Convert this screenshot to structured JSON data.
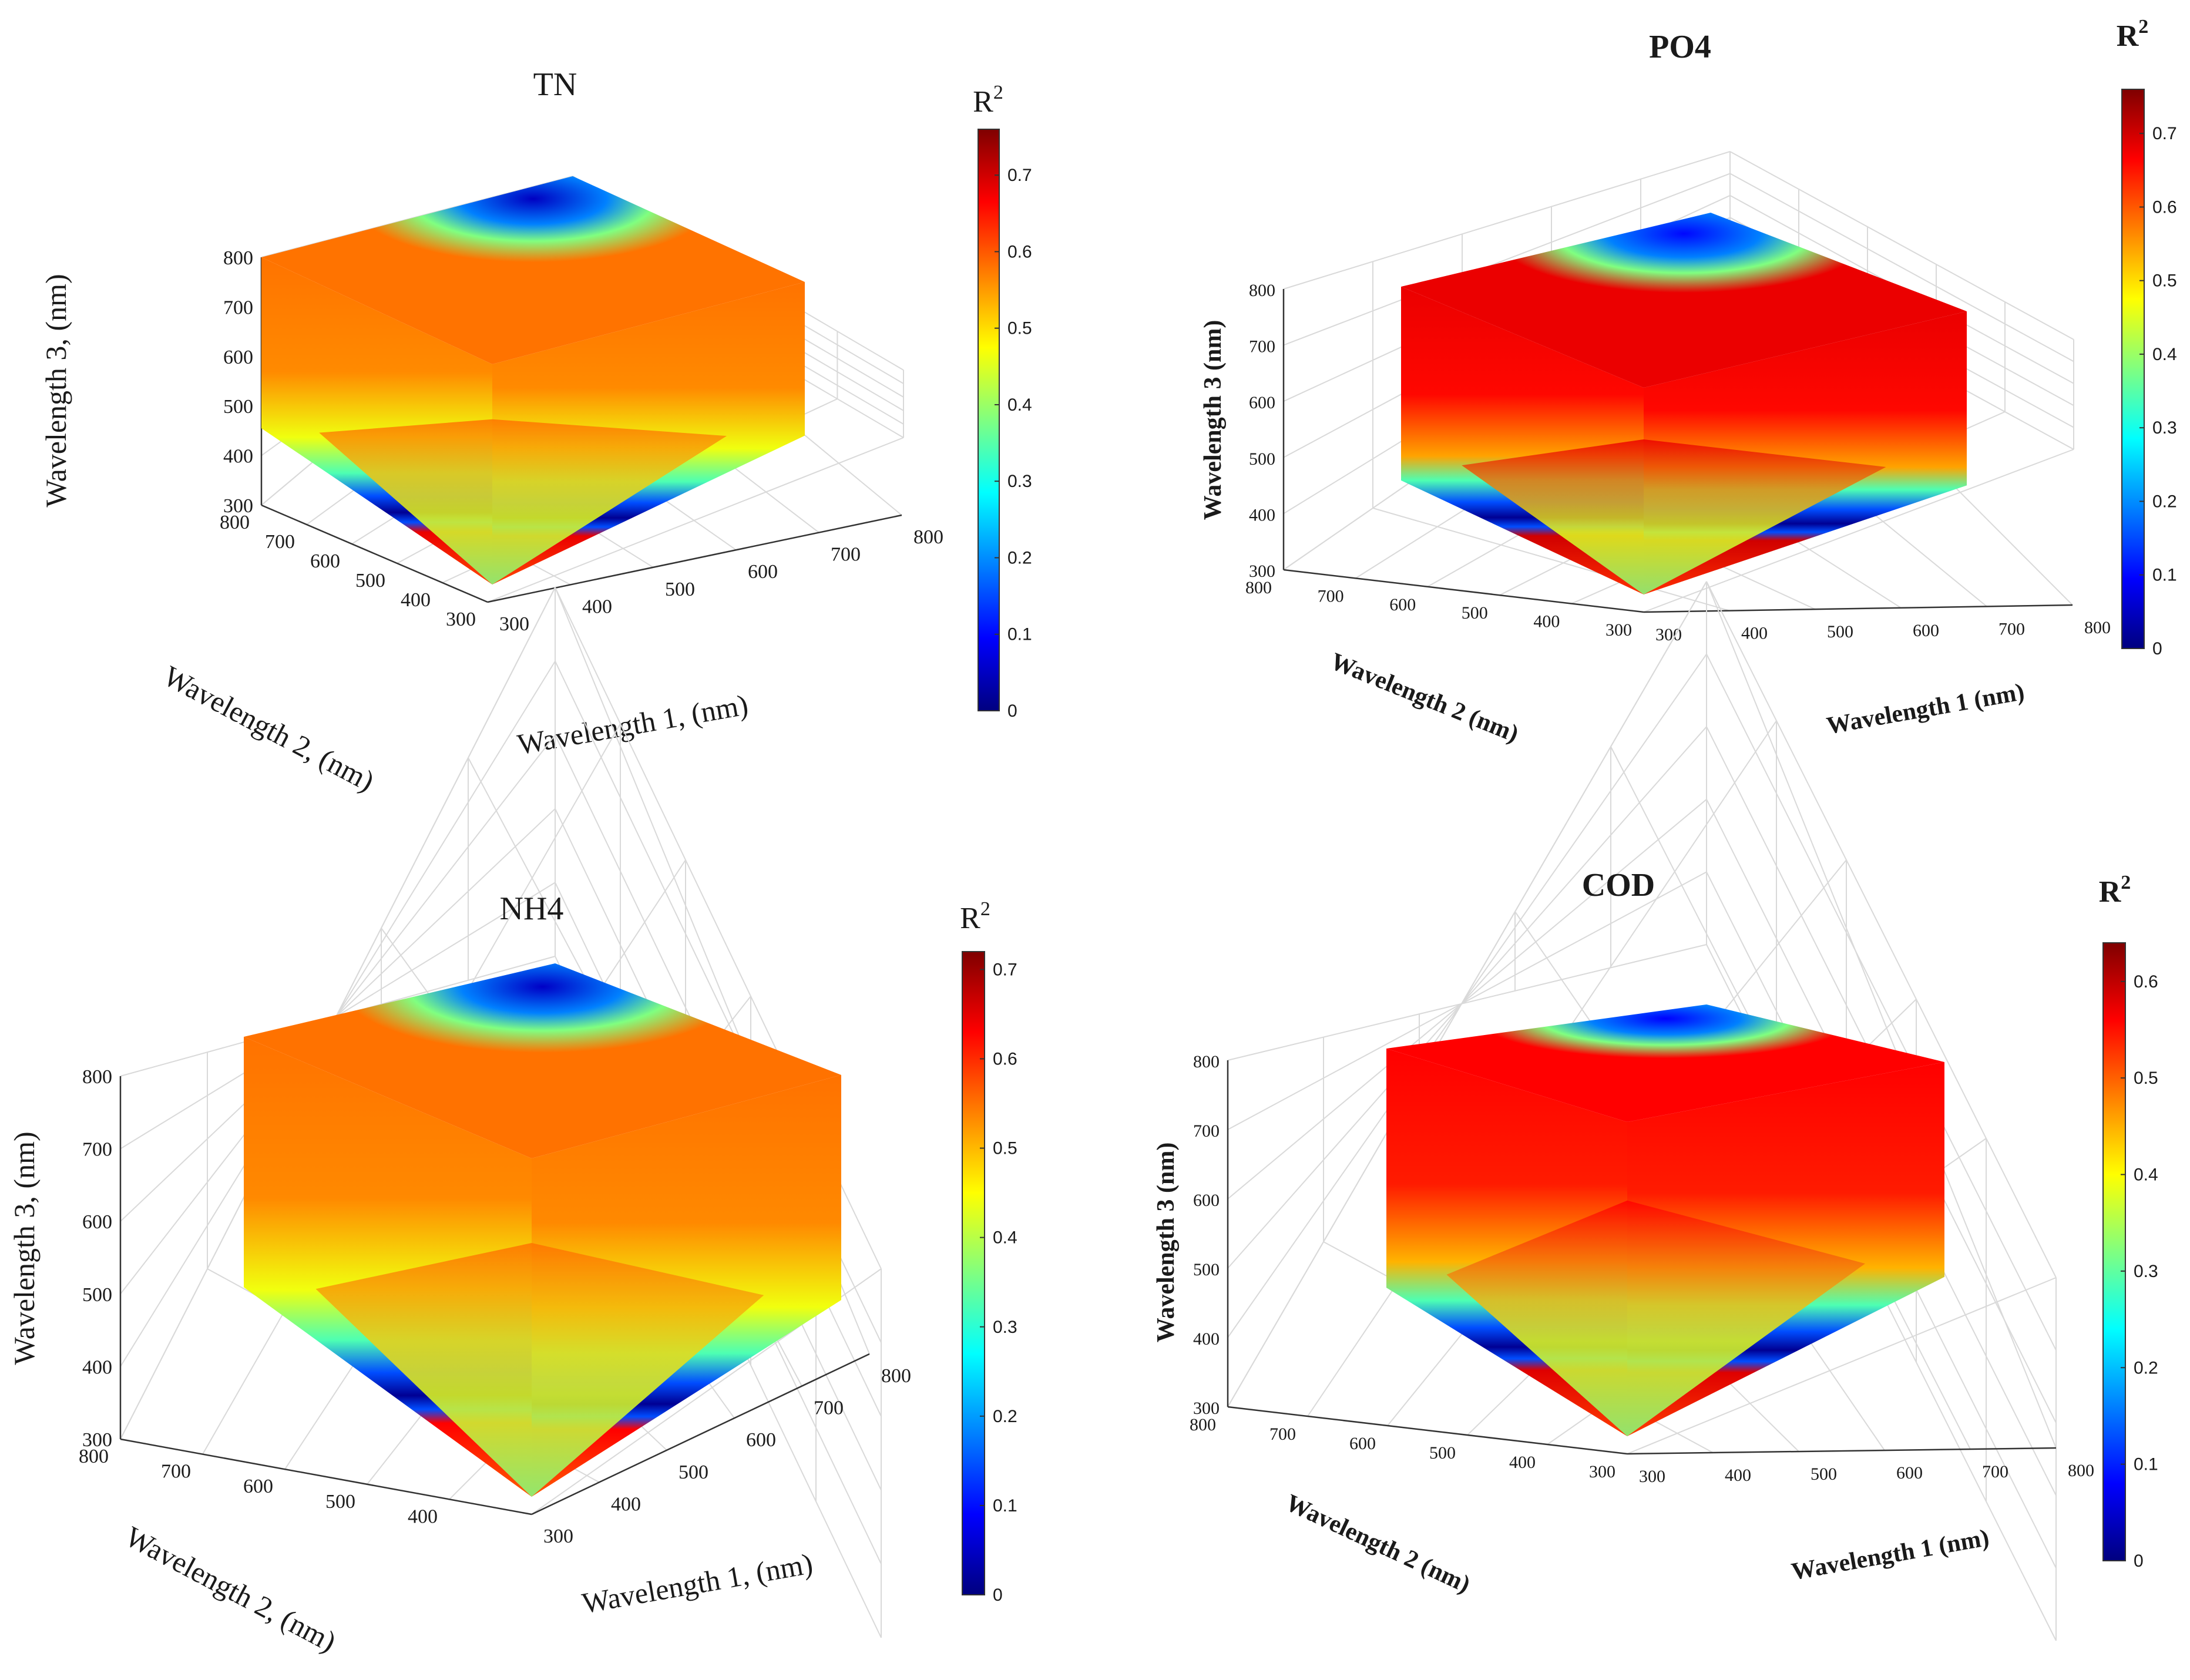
{
  "figure": {
    "colormap": [
      "#00007f",
      "#0000ff",
      "#0080ff",
      "#00ffff",
      "#80ff80",
      "#ffff00",
      "#ff8000",
      "#ff0000",
      "#7f0000"
    ],
    "grid_color": "#d9d9d9",
    "axis_color": "#333333"
  },
  "chart_data": [
    {
      "type": "heatmap",
      "id": "tn",
      "title": "TN",
      "bold": false,
      "xlabel": "Wavelength 1, (nm)",
      "ylabel": "Wavelength 2, (nm)",
      "zlabel": "Wavelength 3, (nm)",
      "x_ticks": [
        "300",
        "400",
        "500",
        "600",
        "700",
        "800"
      ],
      "y_ticks": [
        "300",
        "400",
        "500",
        "600",
        "700",
        "800"
      ],
      "z_ticks": [
        "300",
        "400",
        "500",
        "600",
        "700",
        "800"
      ],
      "xlim": [
        300,
        800
      ],
      "ylim": [
        300,
        800
      ],
      "zlim": [
        300,
        800
      ],
      "colorbar_label": "R",
      "colorbar_exp": "2",
      "colorbar_ticks": [
        "0",
        "0.1",
        "0.2",
        "0.3",
        "0.4",
        "0.5",
        "0.6",
        "0.7"
      ],
      "colorbar_range": [
        0,
        0.76
      ],
      "value_summary": {
        "band_min": 0.0,
        "surface_mean": 0.58,
        "top_cold_min": 0.05,
        "bottom_strip": 0.68
      }
    },
    {
      "type": "heatmap",
      "id": "po4",
      "title": "PO4",
      "bold": true,
      "xlabel": "Wavelength 1 (nm)",
      "ylabel": "Wavelength 2 (nm)",
      "zlabel": "Wavelength 3 (nm)",
      "x_ticks": [
        "300",
        "400",
        "500",
        "600",
        "700",
        "800"
      ],
      "y_ticks": [
        "300",
        "400",
        "500",
        "600",
        "700",
        "800"
      ],
      "z_ticks": [
        "300",
        "400",
        "500",
        "600",
        "700",
        "800"
      ],
      "xlim": [
        300,
        800
      ],
      "ylim": [
        300,
        800
      ],
      "zlim": [
        300,
        800
      ],
      "colorbar_label": "R",
      "colorbar_exp": "2",
      "colorbar_ticks": [
        "0",
        "0.1",
        "0.2",
        "0.3",
        "0.4",
        "0.5",
        "0.6",
        "0.7"
      ],
      "colorbar_range": [
        0,
        0.76
      ],
      "value_summary": {
        "band_min": 0.0,
        "surface_mean": 0.68,
        "top_cold_min": 0.1,
        "bottom_strip": 0.7
      }
    },
    {
      "type": "heatmap",
      "id": "nh4",
      "title": "NH4",
      "bold": false,
      "xlabel": "Wavelength 1, (nm)",
      "ylabel": "Wavelength 2, (nm)",
      "zlabel": "Wavelength 3, (nm)",
      "x_ticks": [
        "300",
        "400",
        "500",
        "600",
        "700",
        "800"
      ],
      "y_ticks": [
        "400",
        "500",
        "600",
        "700",
        "800"
      ],
      "z_ticks": [
        "300",
        "400",
        "500",
        "600",
        "700",
        "800"
      ],
      "xlim": [
        300,
        800
      ],
      "ylim": [
        300,
        800
      ],
      "zlim": [
        300,
        800
      ],
      "colorbar_label": "R",
      "colorbar_exp": "2",
      "colorbar_ticks": [
        "0",
        "0.1",
        "0.2",
        "0.3",
        "0.4",
        "0.5",
        "0.6",
        "0.7"
      ],
      "colorbar_range": [
        0,
        0.72
      ],
      "value_summary": {
        "band_min": 0.0,
        "surface_mean": 0.55,
        "top_cold_min": 0.05,
        "bottom_strip": 0.63
      }
    },
    {
      "type": "heatmap",
      "id": "cod",
      "title": "COD",
      "bold": true,
      "xlabel": "Wavelength 1 (nm)",
      "ylabel": "Wavelength 2 (nm)",
      "zlabel": "Wavelength 3 (nm)",
      "x_ticks": [
        "300",
        "400",
        "500",
        "600",
        "700",
        "800"
      ],
      "y_ticks": [
        "300",
        "400",
        "500",
        "600",
        "700",
        "800"
      ],
      "z_ticks": [
        "300",
        "400",
        "500",
        "600",
        "700",
        "800"
      ],
      "xlim": [
        300,
        800
      ],
      "ylim": [
        300,
        800
      ],
      "zlim": [
        300,
        800
      ],
      "colorbar_label": "R",
      "colorbar_exp": "2",
      "colorbar_ticks": [
        "0",
        "0.1",
        "0.2",
        "0.3",
        "0.4",
        "0.5",
        "0.6"
      ],
      "colorbar_range": [
        0,
        0.64
      ],
      "value_summary": {
        "band_min": 0.0,
        "surface_mean": 0.56,
        "top_cold_min": 0.08,
        "bottom_strip": 0.58
      }
    }
  ]
}
